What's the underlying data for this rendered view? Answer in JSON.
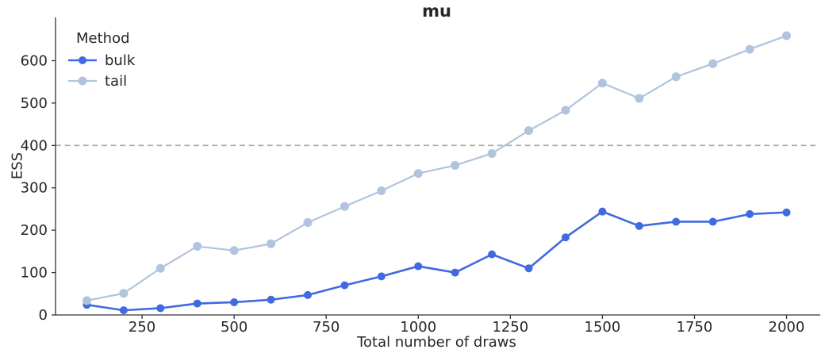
{
  "figure": {
    "title": "mu",
    "background": "#ffffff"
  },
  "axes": {
    "xlabel": "Total number of draws",
    "ylabel": "ESS",
    "spine_color": "#333333",
    "text_color": "#262626",
    "tick_font_size": 18
  },
  "legend": {
    "title": "Method"
  },
  "chart_data": {
    "type": "line",
    "title": "mu",
    "xlabel": "Total number of draws",
    "ylabel": "ESS",
    "x": [
      100,
      200,
      300,
      400,
      500,
      600,
      700,
      800,
      900,
      1000,
      1100,
      1200,
      1300,
      1400,
      1500,
      1600,
      1700,
      1800,
      1900,
      2000
    ],
    "series": [
      {
        "name": "bulk",
        "color": "#4169E1",
        "marker": "circle",
        "marker_radius": 5,
        "line_width": 2.6,
        "values": [
          24,
          11,
          16,
          27,
          30,
          36,
          47,
          70,
          91,
          115,
          100,
          143,
          110,
          183,
          244,
          210,
          220,
          220,
          238,
          242
        ]
      },
      {
        "name": "tail",
        "color": "#B0C4DE",
        "marker": "circle",
        "marker_radius": 5.5,
        "line_width": 2.2,
        "values": [
          34,
          51,
          110,
          162,
          152,
          168,
          218,
          256,
          293,
          334,
          353,
          381,
          435,
          483,
          547,
          511,
          562,
          593,
          627,
          659
        ]
      }
    ],
    "x_ticks": [
      250,
      500,
      750,
      1000,
      1250,
      1500,
      1750,
      2000
    ],
    "y_ticks": [
      0,
      100,
      200,
      300,
      400,
      500,
      600
    ],
    "xlim": [
      15,
      2085
    ],
    "ylim": [
      0,
      702
    ],
    "reference_line": {
      "y": 400,
      "color": "#A9A9A9",
      "style": "dashed"
    },
    "grid": false,
    "legend_position": "upper-left"
  }
}
